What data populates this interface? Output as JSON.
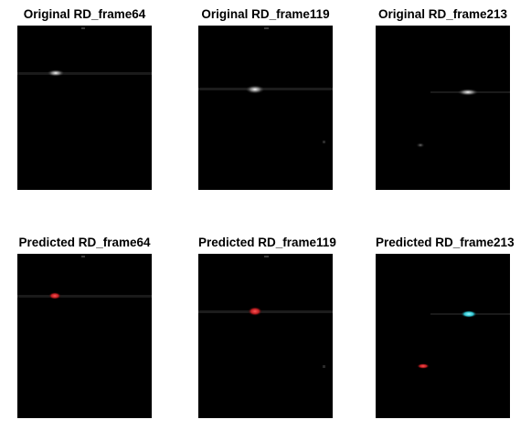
{
  "panels": [
    {
      "title": "Original RD_frame64"
    },
    {
      "title": "Original RD_frame119"
    },
    {
      "title": "Original RD_frame213"
    },
    {
      "title": "Predicted RD_frame64"
    },
    {
      "title": "Predicted RD_frame119"
    },
    {
      "title": "Predicted RD_frame213"
    }
  ],
  "colors": {
    "background": "#000000",
    "target_white": "#ffffff",
    "detection_red": "#e8262a",
    "detection_cyan": "#38e6f0"
  }
}
